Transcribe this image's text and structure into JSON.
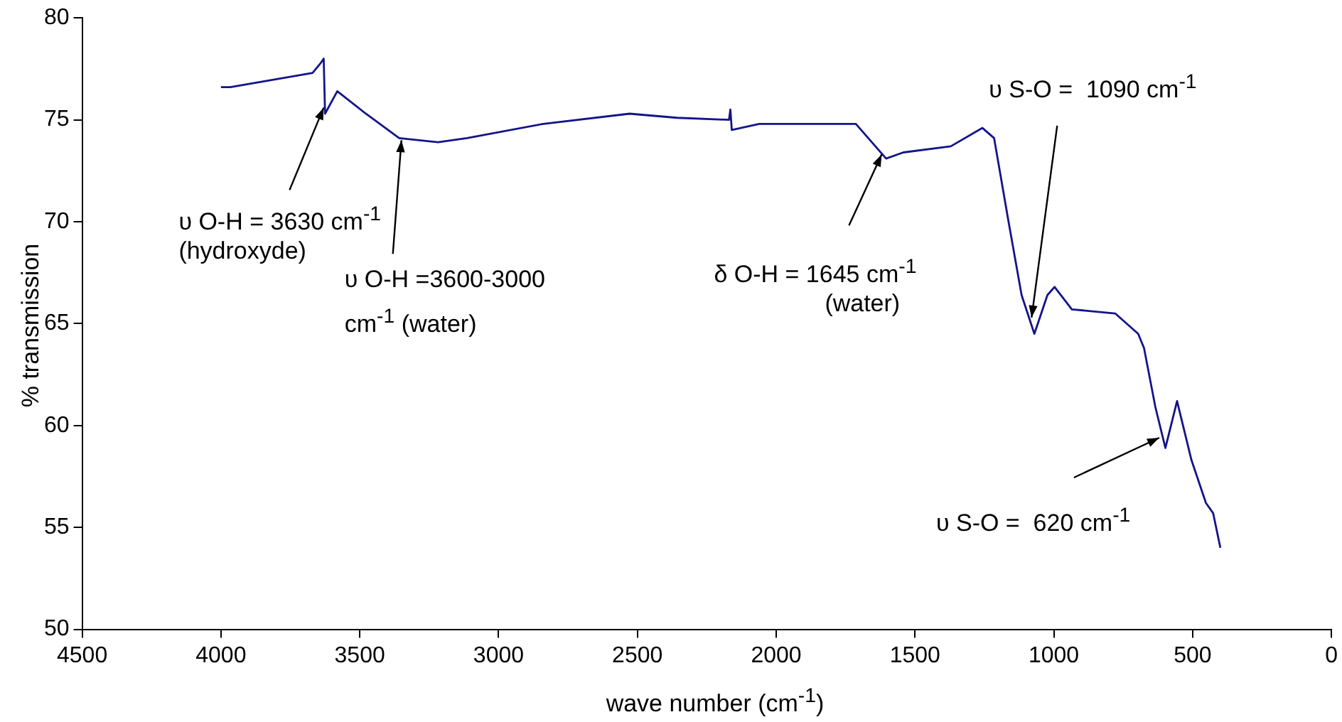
{
  "chart_data": {
    "type": "line",
    "xlabel": "wave number (cm$^{-1}$)",
    "ylabel": "% transmission",
    "x": [
      4000,
      3966,
      3670,
      3640,
      3630,
      3625,
      3581,
      3478,
      3358,
      3218,
      3114,
      2839,
      2528,
      2357,
      2170,
      2165,
      2160,
      2061,
      2025,
      1713,
      1604,
      1542,
      1371,
      1257,
      1215,
      1163,
      1116,
      1070,
      1023,
      997,
      935,
      779,
      696,
      675,
      634,
      598,
      556,
      504,
      452,
      426,
      400
    ],
    "series": [
      {
        "color": "#14148c",
        "values": [
          76.6,
          76.6,
          77.3,
          77.8,
          78.0,
          75.3,
          76.4,
          75.3,
          74.1,
          73.9,
          74.1,
          74.8,
          75.3,
          75.1,
          75.0,
          75.5,
          74.5,
          74.8,
          74.8,
          74.8,
          73.1,
          73.4,
          73.7,
          74.6,
          74.1,
          70.0,
          66.4,
          64.5,
          66.4,
          66.8,
          65.7,
          65.5,
          64.5,
          63.8,
          60.9,
          58.9,
          61.2,
          58.3,
          56.2,
          55.7,
          54.0
        ]
      }
    ],
    "xlim": [
      4500,
      0
    ],
    "xticks": [
      4500,
      4000,
      3500,
      3000,
      2500,
      2000,
      1500,
      1000,
      500,
      0
    ],
    "ylim": [
      50,
      80
    ],
    "yticks": [
      50,
      55,
      60,
      65,
      70,
      75,
      80
    ],
    "grid": false,
    "legend": false,
    "marker": "none",
    "line_style": "solid",
    "annotations": [
      {
        "text": "υ O-H = 3630 cm$^{-1}$",
        "x": 3630,
        "y": 75.6
      },
      "(hydroxyde)",
      {
        "text": "υ O-H =3600-3000",
        "x": 3350,
        "y": 74.0
      },
      "cm$^{-1}$ (water)",
      {
        "text": "δ O-H = 1645 cm$^{-1}$",
        "x": 1620,
        "y": 73.3
      },
      "(water)",
      {
        "text": "υ S-O =  1090 cm$^{-1}$",
        "x": 1080,
        "y": 65.3
      },
      {
        "text": "υ S-O =  620 cm$^{-1}$",
        "x": 620,
        "y": 59.4
      }
    ]
  }
}
